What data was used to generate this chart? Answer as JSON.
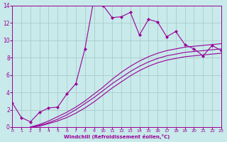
{
  "xlabel": "Windchill (Refroidissement éolien,°C)",
  "bg_color": "#c8eaea",
  "grid_color": "#aacccc",
  "line_color": "#990099",
  "xlim": [
    0,
    23
  ],
  "ylim": [
    0,
    14
  ],
  "yticks": [
    0,
    2,
    4,
    6,
    8,
    10,
    12,
    14
  ],
  "series": [
    {
      "x": [
        0,
        1,
        2,
        3,
        4,
        5,
        6,
        7,
        8,
        9,
        10,
        11,
        12,
        13,
        14,
        15,
        16,
        17,
        18,
        19,
        20,
        21,
        22,
        23
      ],
      "y": [
        2.8,
        1.1,
        0.6,
        1.7,
        2.2,
        2.3,
        3.8,
        5.0,
        9.0,
        14.8,
        14.0,
        12.6,
        12.7,
        13.2,
        10.6,
        12.4,
        12.1,
        10.4,
        11.0,
        9.5,
        9.0,
        8.2,
        9.4,
        8.8
      ],
      "has_markers": true
    },
    {
      "x": [
        2,
        3,
        4,
        5,
        6,
        7,
        8,
        9,
        10,
        11,
        12,
        13,
        14,
        15,
        16,
        17,
        18,
        19,
        20,
        21,
        22,
        23
      ],
      "y": [
        0,
        0.3,
        0.7,
        1.2,
        1.7,
        2.3,
        3.0,
        3.8,
        4.6,
        5.5,
        6.3,
        7.0,
        7.6,
        8.1,
        8.5,
        8.8,
        9.0,
        9.2,
        9.3,
        9.4,
        9.5,
        9.6
      ],
      "has_markers": false
    },
    {
      "x": [
        2,
        3,
        4,
        5,
        6,
        7,
        8,
        9,
        10,
        11,
        12,
        13,
        14,
        15,
        16,
        17,
        18,
        19,
        20,
        21,
        22,
        23
      ],
      "y": [
        0,
        0.2,
        0.5,
        0.9,
        1.4,
        2.0,
        2.7,
        3.4,
        4.2,
        5.0,
        5.7,
        6.4,
        7.0,
        7.5,
        7.9,
        8.2,
        8.4,
        8.6,
        8.7,
        8.8,
        8.9,
        9.0
      ],
      "has_markers": false
    },
    {
      "x": [
        2,
        3,
        4,
        5,
        6,
        7,
        8,
        9,
        10,
        11,
        12,
        13,
        14,
        15,
        16,
        17,
        18,
        19,
        20,
        21,
        22,
        23
      ],
      "y": [
        0,
        0.1,
        0.4,
        0.7,
        1.1,
        1.6,
        2.2,
        2.9,
        3.7,
        4.5,
        5.2,
        5.9,
        6.5,
        7.0,
        7.4,
        7.7,
        7.9,
        8.1,
        8.2,
        8.3,
        8.4,
        8.5
      ],
      "has_markers": false
    }
  ]
}
